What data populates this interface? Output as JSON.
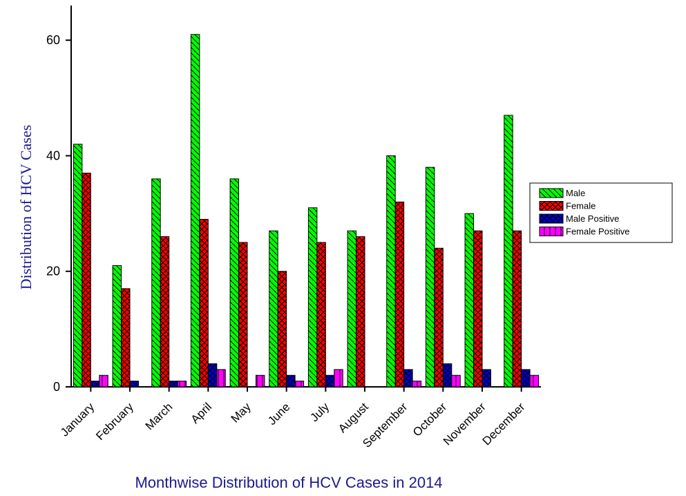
{
  "chart_data": {
    "type": "bar",
    "x_label": "Monthwise Distribution of HCV Cases in 2014",
    "y_label": "Distribution of  HCV Cases",
    "categories": [
      "January",
      "February",
      "March",
      "April",
      "May",
      "June",
      "July",
      "August",
      "September",
      "October",
      "November",
      "December"
    ],
    "series": [
      {
        "name": "Male",
        "color": "#00ff00",
        "values": [
          42,
          21,
          36,
          61,
          36,
          27,
          31,
          27,
          40,
          38,
          30,
          47
        ]
      },
      {
        "name": "Female",
        "color": "#ff0000",
        "values": [
          37,
          17,
          26,
          29,
          25,
          20,
          25,
          26,
          32,
          24,
          27,
          27
        ]
      },
      {
        "name": "Male Positive",
        "color": "#0000cc",
        "values": [
          1,
          1,
          1,
          4,
          0,
          2,
          2,
          0,
          3,
          4,
          3,
          3
        ]
      },
      {
        "name": "Female Positive",
        "color": "#ff00ff",
        "values": [
          2,
          0,
          1,
          3,
          2,
          1,
          3,
          0,
          1,
          2,
          0,
          2
        ]
      }
    ],
    "ylim": [
      0,
      66
    ],
    "yticks": [
      0,
      20,
      40,
      60
    ],
    "legend": "right"
  }
}
